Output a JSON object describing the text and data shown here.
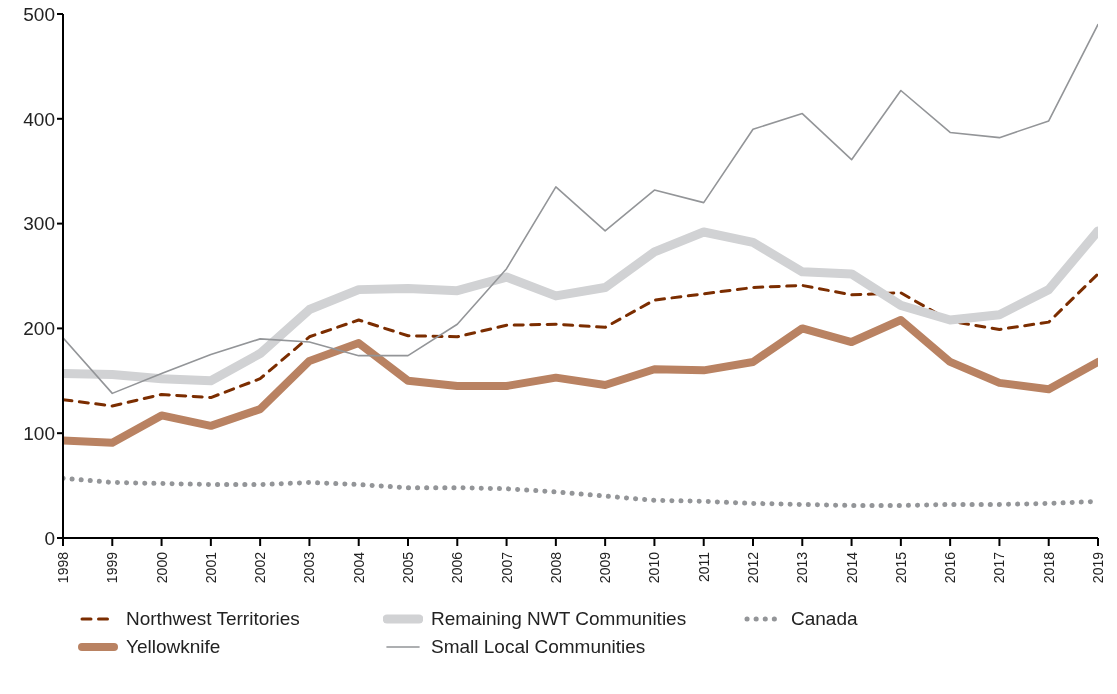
{
  "chart_data": {
    "type": "line",
    "x": [
      1998,
      1999,
      2000,
      2001,
      2002,
      2003,
      2004,
      2005,
      2006,
      2007,
      2008,
      2009,
      2010,
      2011,
      2012,
      2013,
      2014,
      2015,
      2016,
      2017,
      2018,
      2019
    ],
    "xlim": [
      1998,
      2019
    ],
    "xticks": [
      1998,
      1999,
      2000,
      2001,
      2002,
      2003,
      2004,
      2005,
      2006,
      2007,
      2008,
      2009,
      2010,
      2011,
      2012,
      2013,
      2014,
      2015,
      2016,
      2017,
      2018,
      2019
    ],
    "ylim": [
      0,
      500
    ],
    "yticks": [
      0,
      100,
      200,
      300,
      400,
      500
    ],
    "grid": false,
    "legend": "bottom",
    "marker": "none",
    "series": [
      {
        "name": "Northwest Territories",
        "color": "#7b2d00",
        "line_style": "dashed",
        "values": [
          132,
          126,
          137,
          134,
          152,
          192,
          208,
          193,
          192,
          203,
          204,
          201,
          227,
          233,
          239,
          241,
          232,
          234,
          207,
          199,
          206,
          252
        ]
      },
      {
        "name": "Remaining NWT Communities",
        "color": "#d1d2d4",
        "line_style": "solid",
        "values": [
          157,
          156,
          152,
          150,
          176,
          218,
          237,
          238,
          236,
          249,
          231,
          239,
          273,
          292,
          282,
          254,
          252,
          222,
          208,
          213,
          237,
          293
        ]
      },
      {
        "name": "Canada",
        "color": "#939598",
        "line_style": "dotted",
        "values": [
          57,
          53,
          52,
          51,
          51,
          53,
          51,
          48,
          48,
          47,
          44,
          40,
          36,
          35,
          33,
          32,
          31,
          31,
          32,
          32,
          33,
          35
        ]
      },
      {
        "name": "Yellowknife",
        "color": "#b98262",
        "line_style": "solid",
        "values": [
          93,
          91,
          117,
          107,
          123,
          169,
          186,
          150,
          145,
          145,
          153,
          146,
          161,
          160,
          168,
          200,
          187,
          208,
          168,
          148,
          142,
          168
        ]
      },
      {
        "name": "Small Local Communities",
        "color": "#939598",
        "line_style": "solid",
        "values": [
          191,
          138,
          157,
          175,
          190,
          187,
          174,
          174,
          204,
          257,
          335,
          293,
          332,
          320,
          390,
          405,
          361,
          427,
          387,
          382,
          398,
          490
        ]
      }
    ]
  }
}
